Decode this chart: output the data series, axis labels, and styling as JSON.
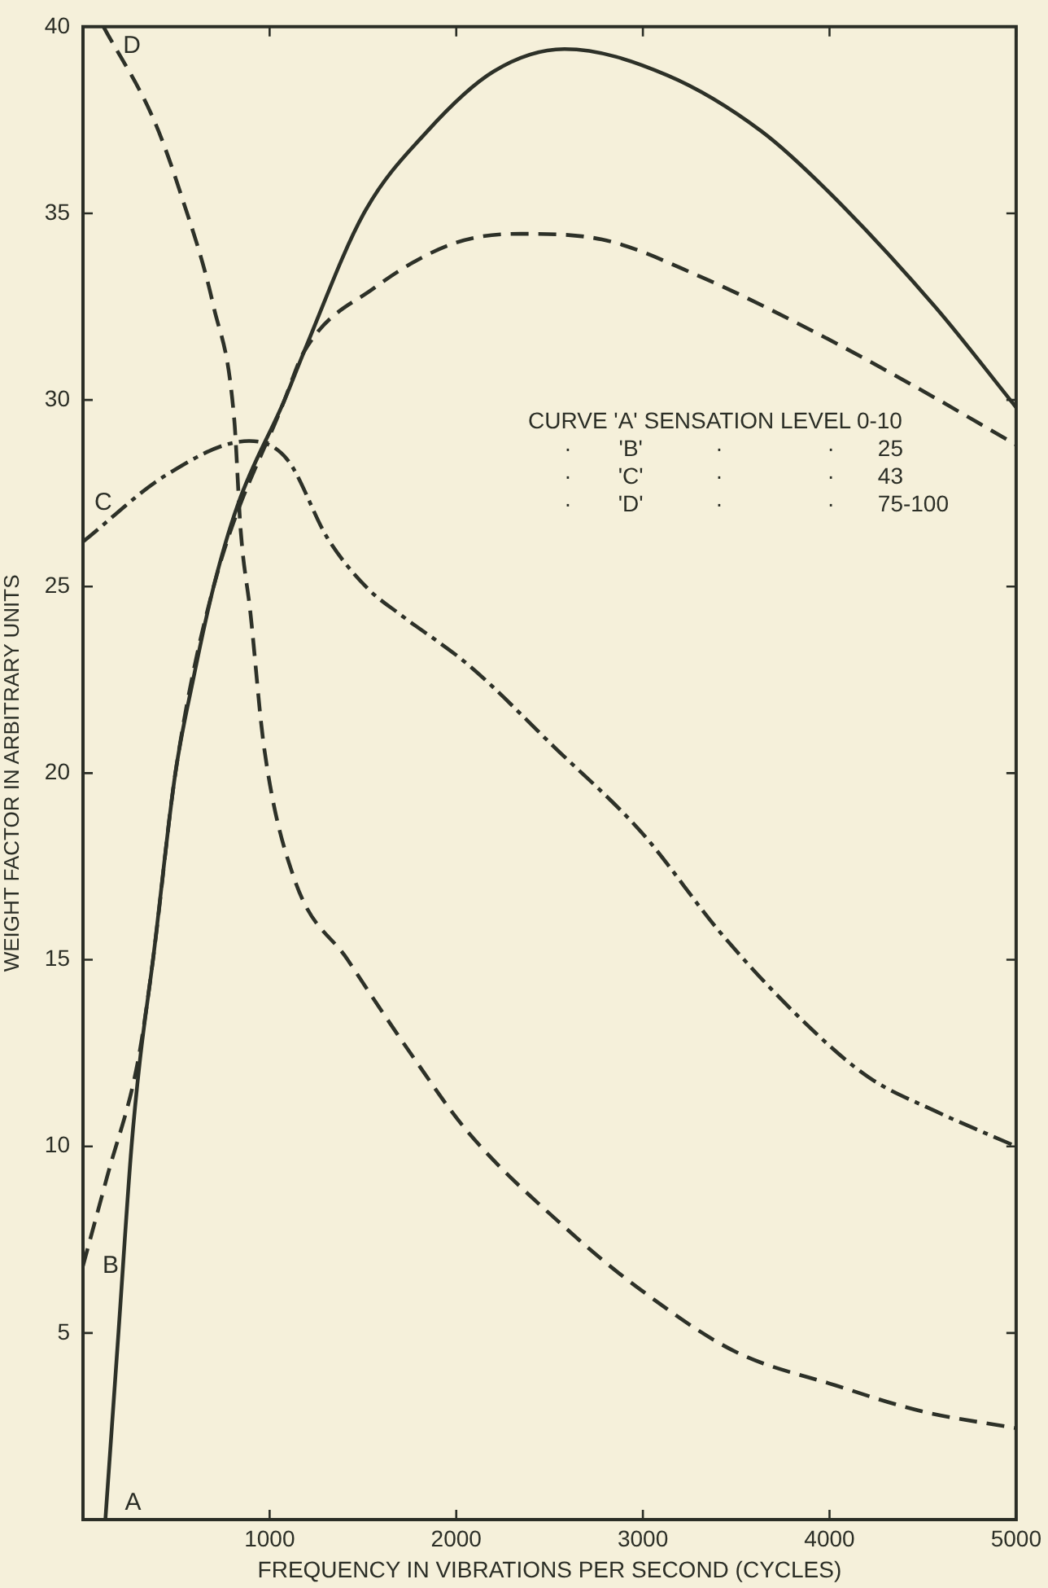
{
  "chart_data": {
    "type": "line",
    "xlabel": "FREQUENCY IN VIBRATIONS PER SECOND (CYCLES)",
    "ylabel": "WEIGHT FACTOR IN ARBITRARY UNITS",
    "xlim": [
      0,
      5000
    ],
    "ylim": [
      0,
      40
    ],
    "xticks": [
      1000,
      2000,
      3000,
      4000,
      5000
    ],
    "yticks": [
      5,
      10,
      15,
      20,
      25,
      30,
      35,
      40
    ],
    "annotations": [
      "CURVE 'A' SENSATION LEVEL 0-10",
      "· 'B' · · 25",
      "· 'C' · · 43",
      "· 'D' · · 75-100"
    ],
    "series": [
      {
        "name": "A",
        "color": "#2d3128",
        "line_style": "solid",
        "x": [
          120,
          190,
          260,
          305,
          375,
          495,
          590,
          700,
          830,
          1080,
          1185,
          1505,
          1845,
          2200,
          2580,
          3130,
          3635,
          3990,
          4565,
          5000
        ],
        "values": [
          0,
          5,
          10,
          12.3,
          15,
          20,
          22.5,
          25,
          27.2,
          30,
          31.3,
          35,
          37.2,
          38.8,
          39.4,
          38.7,
          37.2,
          35.6,
          32.5,
          29.8
        ]
      },
      {
        "name": "B",
        "color": "#2d3128",
        "line_style": "dashed",
        "x": [
          0,
          130,
          295,
          375,
          495,
          700,
          1080,
          1185,
          1560,
          1990,
          2345,
          2780,
          3310,
          3850,
          4390,
          5000
        ],
        "values": [
          6.8,
          9.2,
          12.3,
          15,
          20,
          25,
          30,
          31.3,
          33,
          34.2,
          34.45,
          34.3,
          33.3,
          32,
          30.55,
          28.8
        ]
      },
      {
        "name": "C",
        "color": "#2d3128",
        "line_style": "dashdot",
        "x": [
          0,
          450,
          890,
          1095,
          1310,
          1525,
          1700,
          2065,
          2525,
          2995,
          3420,
          3850,
          4210,
          4565,
          5000
        ],
        "values": [
          26.2,
          28,
          28.9,
          28.4,
          26.3,
          24.95,
          24.25,
          22.9,
          20.7,
          18.4,
          15.7,
          13.4,
          11.85,
          10.95,
          10
        ]
      },
      {
        "name": "D",
        "color": "#2d3128",
        "line_style": "dashed",
        "x": [
          110,
          380,
          522,
          700,
          810,
          845,
          897,
          970,
          1130,
          1418,
          1775,
          2060,
          2600,
          2990,
          3495,
          4030,
          4495,
          5000
        ],
        "values": [
          40,
          37.5,
          35.55,
          32.5,
          29.5,
          26.5,
          24.3,
          20.7,
          17.2,
          15,
          12.35,
          10.4,
          7.75,
          6.15,
          4.5,
          3.6,
          2.9,
          2.45
        ]
      }
    ]
  }
}
